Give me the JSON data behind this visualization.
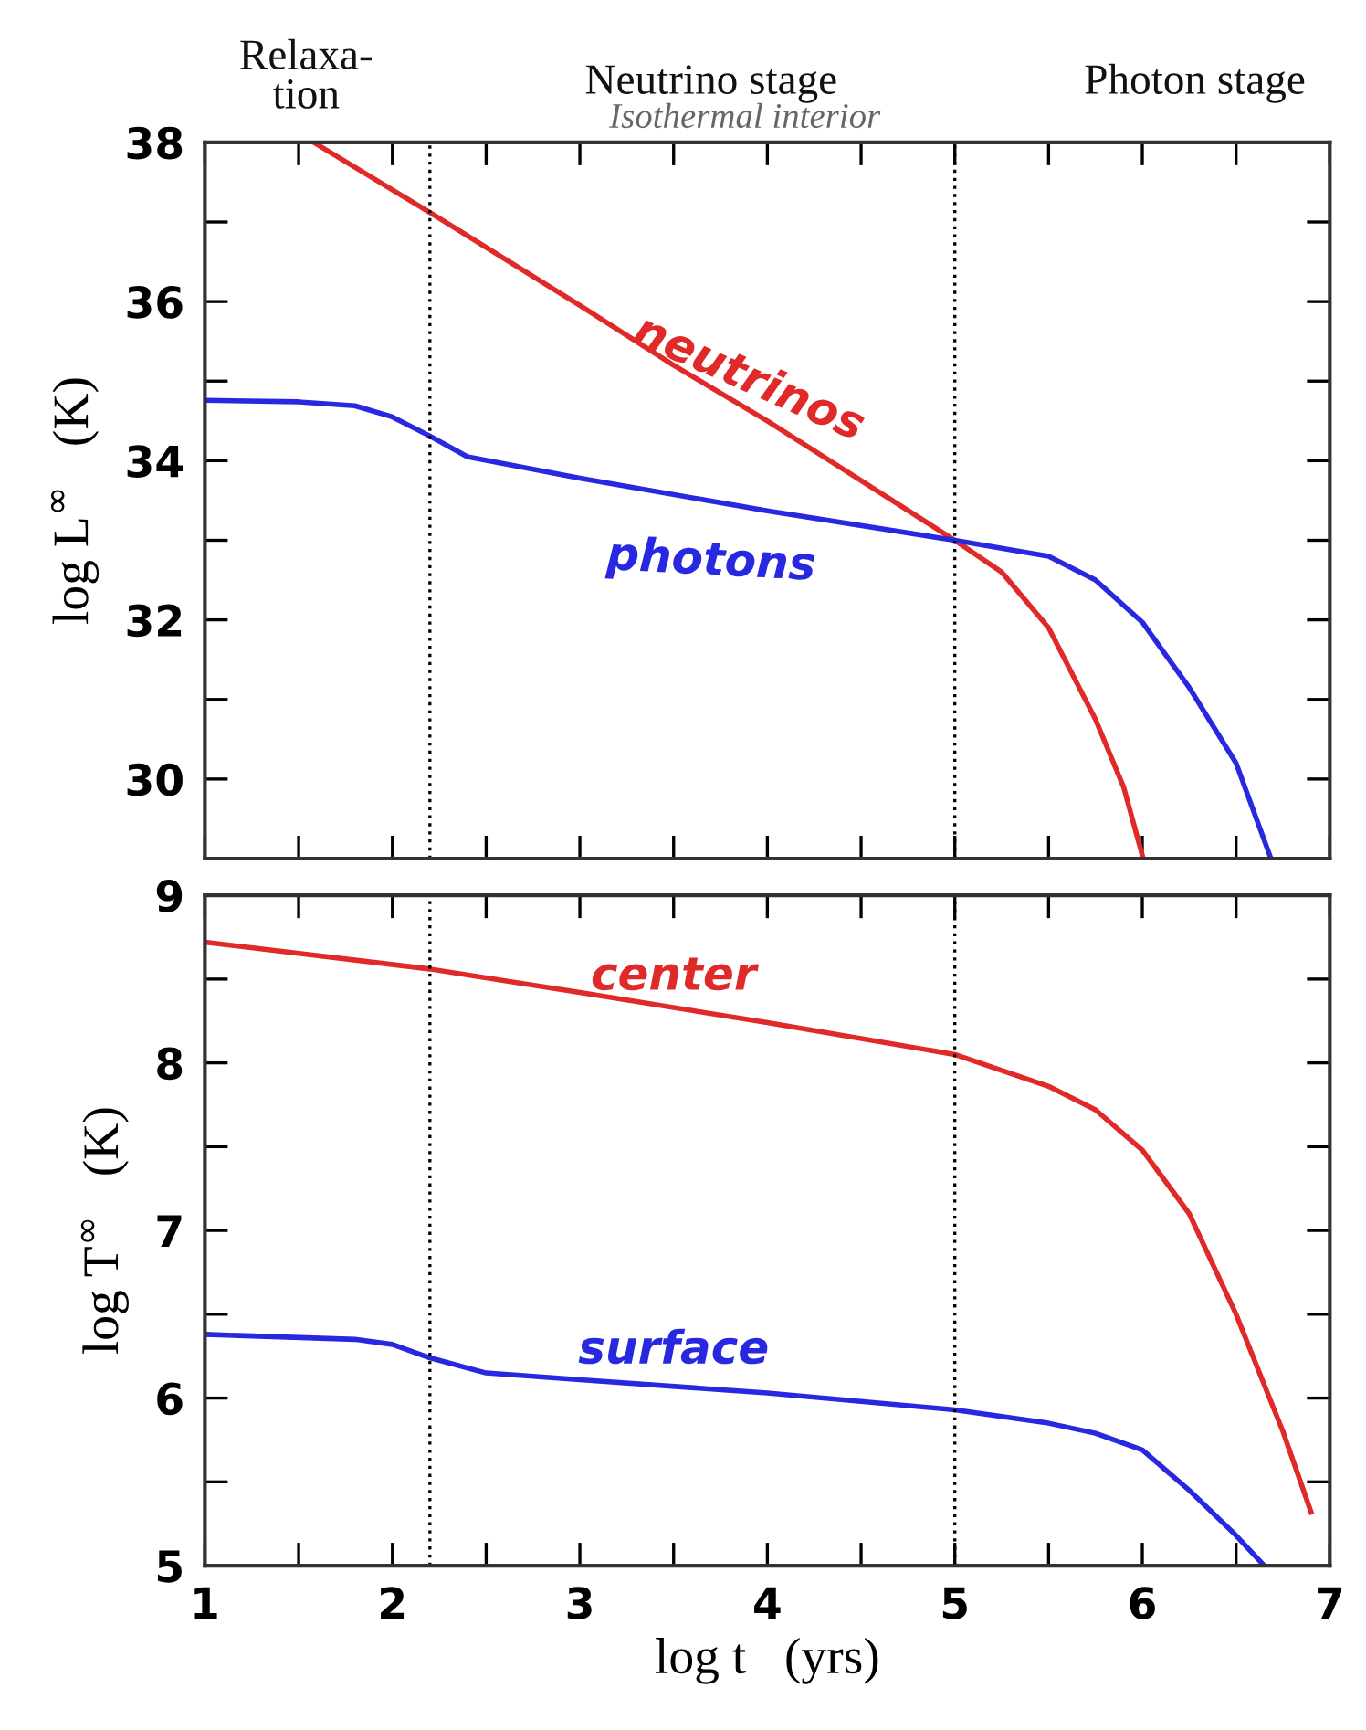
{
  "chart_data": [
    {
      "type": "line",
      "ylabel": "log L$^{∞}$   (K)",
      "xlim": [
        1,
        7
      ],
      "ylim": [
        29,
        38
      ],
      "xticks": [
        1,
        {
          "value": 1.5,
          "label": null
        },
        2,
        {
          "value": 2.5,
          "label": null
        },
        3,
        {
          "value": 3.5,
          "label": null
        },
        4,
        {
          "value": 4.5,
          "label": null
        },
        5,
        {
          "value": 5.5,
          "label": null
        },
        6,
        {
          "value": 6.5,
          "label": null
        },
        7
      ],
      "yticks": [
        30,
        {
          "value": 31,
          "label": null
        },
        32,
        {
          "value": 33,
          "label": null
        },
        34,
        {
          "value": 35,
          "label": null
        },
        36,
        {
          "value": 37,
          "label": null
        },
        38
      ],
      "tick_labels": "y",
      "line_style": "solid",
      "grid": false,
      "legend": false,
      "series": [
        {
          "name": "neutrinos",
          "color": "#e02a2a",
          "x": [
            1.58,
            2.2,
            3,
            3.5,
            4,
            4.5,
            5,
            5.25,
            5.5,
            5.75,
            5.9,
            6
          ],
          "values": [
            38,
            37.12,
            35.95,
            35.2,
            34.5,
            33.75,
            33,
            32.6,
            31.9,
            30.75,
            29.9,
            29.04
          ]
        },
        {
          "name": "photons",
          "color": "#2828e0",
          "x": [
            1,
            1.5,
            1.8,
            2,
            2.2,
            2.4,
            3,
            4,
            5,
            5.5,
            5.75,
            6,
            6.25,
            6.5,
            6.68
          ],
          "values": [
            34.76,
            34.74,
            34.69,
            34.55,
            34.31,
            34.05,
            33.78,
            33.37,
            33,
            32.8,
            32.5,
            31.97,
            31.15,
            30.2,
            29.04
          ]
        }
      ],
      "ref_lines": [
        {
          "axis": "x",
          "value": 2.2,
          "color": "#000000",
          "line_style": "dotted"
        },
        {
          "axis": "x",
          "value": 5,
          "color": "#000000",
          "line_style": "dotted"
        }
      ],
      "annotations": [
        "Relaxa-\ntion",
        "Neutrino stage",
        "Photon stage",
        "Isothermal interior"
      ]
    },
    {
      "type": "line",
      "xlabel": "log t   (yrs)",
      "ylabel": "log T$^{∞}$   (K)",
      "xlim": [
        1,
        7
      ],
      "ylim": [
        5,
        9
      ],
      "xticks": [
        1,
        {
          "value": 1.5,
          "label": null
        },
        2,
        {
          "value": 2.5,
          "label": null
        },
        3,
        {
          "value": 3.5,
          "label": null
        },
        4,
        {
          "value": 4.5,
          "label": null
        },
        5,
        {
          "value": 5.5,
          "label": null
        },
        6,
        {
          "value": 6.5,
          "label": null
        },
        7
      ],
      "yticks": [
        5,
        {
          "value": 5.5,
          "label": null
        },
        6,
        {
          "value": 6.5,
          "label": null
        },
        7,
        {
          "value": 7.5,
          "label": null
        },
        8,
        {
          "value": 8.5,
          "label": null
        },
        9
      ],
      "line_style": "solid",
      "grid": false,
      "legend": false,
      "series": [
        {
          "name": "center",
          "color": "#e02a2a",
          "x": [
            1,
            2.2,
            3,
            4,
            5,
            5.5,
            5.75,
            6,
            6.25,
            6.5,
            6.75,
            6.9
          ],
          "values": [
            8.72,
            8.56,
            8.42,
            8.24,
            8.05,
            7.86,
            7.72,
            7.48,
            7.1,
            6.5,
            5.8,
            5.32
          ]
        },
        {
          "name": "surface",
          "color": "#2828e0",
          "x": [
            1,
            1.8,
            2,
            2.2,
            2.5,
            3,
            4,
            5,
            5.5,
            5.75,
            6,
            6.25,
            6.5,
            6.65
          ],
          "values": [
            6.38,
            6.35,
            6.32,
            6.24,
            6.15,
            6.11,
            6.03,
            5.93,
            5.85,
            5.79,
            5.69,
            5.45,
            5.18,
            5.0
          ]
        }
      ],
      "ref_lines": [
        {
          "axis": "x",
          "value": 2.2,
          "color": "#000000",
          "line_style": "dotted"
        },
        {
          "axis": "x",
          "value": 5,
          "color": "#000000",
          "line_style": "dotted"
        }
      ]
    }
  ]
}
